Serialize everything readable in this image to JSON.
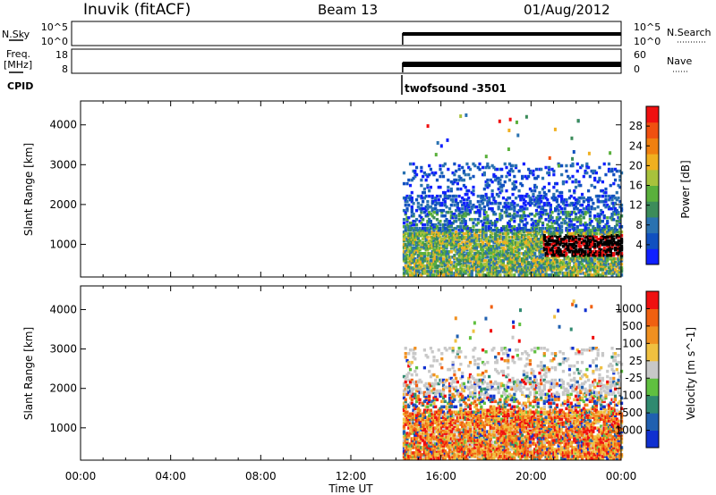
{
  "header": {
    "site": "Inuvik (fitACF)",
    "beam": "Beam 13",
    "date": "01/Aug/2012"
  },
  "top_panels": {
    "nsky": {
      "label": "N.Sky",
      "yticks": [
        "10^5",
        "10^0"
      ]
    },
    "nsearch": {
      "label": "N.Search",
      "yticks": [
        "10^5",
        "10^0"
      ]
    },
    "freq": {
      "label1": "Freq.",
      "label2": "[MHz]",
      "yticks": [
        "18",
        "8"
      ]
    },
    "nave": {
      "label": "Nave",
      "yticks": [
        "60",
        "0"
      ]
    },
    "cpid": {
      "label": "CPID",
      "value": "twofsound -3501"
    }
  },
  "chart_data": [
    {
      "type": "heatmap",
      "name": "power-panel",
      "xlabel": "Time UT",
      "ylabel": "Slant Range [km]",
      "x_ticks": [
        "00:00",
        "04:00",
        "08:00",
        "12:00",
        "16:00",
        "20:00",
        "00:00"
      ],
      "y_ticks": [
        1000,
        2000,
        3000,
        4000
      ],
      "xlim_hours": [
        0,
        24
      ],
      "ylim_km": [
        180,
        4600
      ],
      "data_start_hour": 14.3,
      "colorbar": {
        "label": "Power [dB]",
        "tick_labels": [
          "4",
          "8",
          "12",
          "16",
          "20",
          "24",
          "28"
        ],
        "colors": [
          "#1020ff",
          "#1050c0",
          "#2a72b0",
          "#3c8c5a",
          "#5ab03c",
          "#a8c23c",
          "#f0b020",
          "#f08010",
          "#f05010",
          "#f01010"
        ]
      }
    },
    {
      "type": "heatmap",
      "name": "velocity-panel",
      "xlabel": "Time UT",
      "ylabel": "Slant Range [km]",
      "x_ticks": [
        "00:00",
        "04:00",
        "08:00",
        "12:00",
        "16:00",
        "20:00",
        "00:00"
      ],
      "y_ticks": [
        1000,
        2000,
        3000,
        4000
      ],
      "xlim_hours": [
        0,
        24
      ],
      "ylim_km": [
        180,
        4600
      ],
      "data_start_hour": 14.3,
      "colorbar": {
        "label": "Velocity [m s^-1]",
        "tick_labels": [
          "1000",
          "500",
          "100",
          "25",
          "-25",
          "-100",
          "-500",
          "-1000"
        ],
        "colors": [
          "#1030d0",
          "#2060b0",
          "#308a70",
          "#60c040",
          "#c8c8c8",
          "#f0c040",
          "#f09020",
          "#f06010",
          "#f01010"
        ]
      }
    }
  ]
}
